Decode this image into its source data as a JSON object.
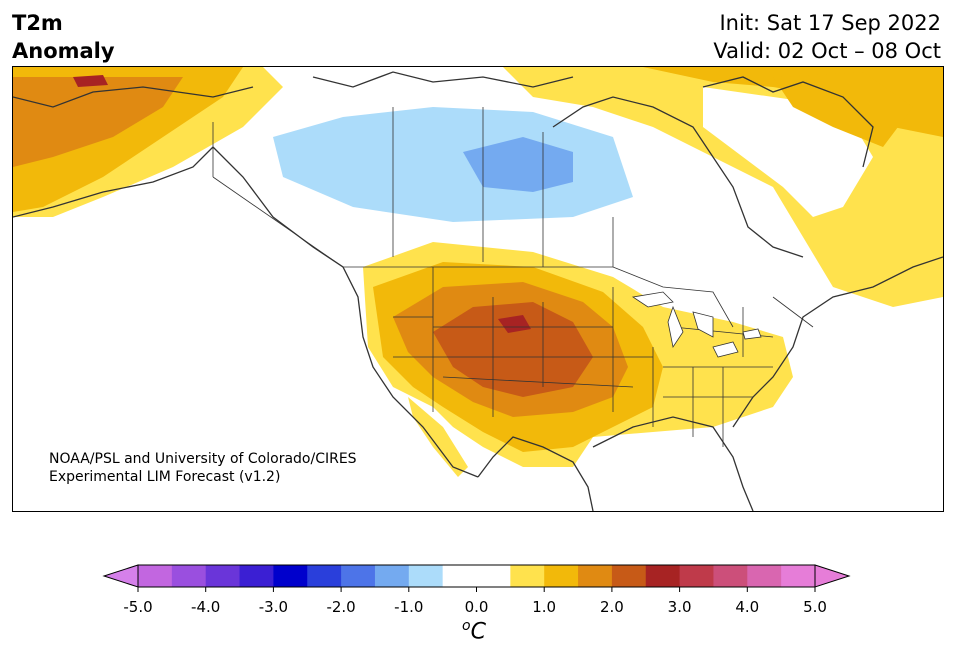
{
  "title": {
    "line1": "T2m",
    "line2": "Anomaly"
  },
  "header_right": {
    "init": "Init: Sat 17 Sep 2022",
    "valid": "Valid: 02 Oct – 08 Oct"
  },
  "credit": {
    "line1": "NOAA/PSL and University of Colorado/CIRES",
    "line2": "Experimental LIM Forecast (v1.2)"
  },
  "colorbar": {
    "unit_base": "C",
    "unit_super": "o",
    "ticks": [
      "-5.0",
      "-4.0",
      "-3.0",
      "-2.0",
      "-1.0",
      "0.0",
      "1.0",
      "2.0",
      "3.0",
      "4.0",
      "5.0"
    ],
    "colors": [
      "#c266e0",
      "#9a4fdf",
      "#6a35d9",
      "#3b1fd3",
      "#0000cc",
      "#2a3fdb",
      "#4d74e8",
      "#74aaf0",
      "#acdcfa",
      "#ffffff",
      "#ffffff",
      "#ffe24d",
      "#f2b90a",
      "#e08a12",
      "#c75a17",
      "#a72323",
      "#bf3a4a",
      "#cc4f7a",
      "#d966b0",
      "#e67dd8"
    ],
    "under_color": "#d580ea",
    "over_color": "#e67dd8"
  },
  "map_colors": {
    "light_blue": "#acdcfa",
    "blue": "#74aaf0",
    "yellow": "#ffe24d",
    "gold": "#f2b90a",
    "orange": "#e08a12",
    "dark_orange": "#c75a17",
    "red": "#a72323"
  }
}
